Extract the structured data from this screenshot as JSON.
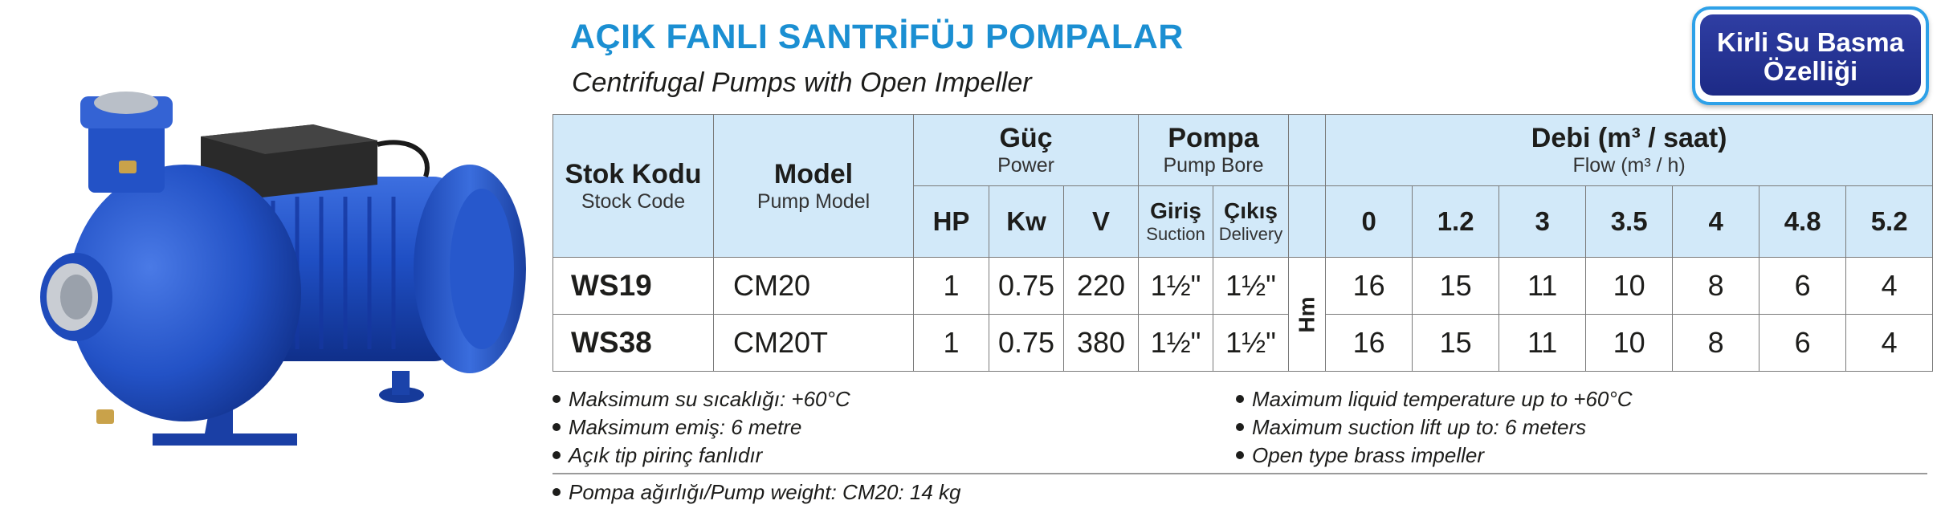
{
  "header": {
    "title": "AÇIK FANLI SANTRİFÜJ POMPALAR",
    "subtitle": "Centrifugal Pumps with Open Impeller"
  },
  "badge": {
    "line1": "Kirli Su Basma",
    "line2": "Özelliği"
  },
  "colors": {
    "title_blue": "#1b8fd2",
    "header_fill": "#d2e9f9",
    "badge_navy": "#2f3ea3",
    "pump_blue": "#1f4fc4"
  },
  "product_image": "blue-centrifugal-pump",
  "table": {
    "stock_code": {
      "tr": "Stok Kodu",
      "en": "Stock Code"
    },
    "model": {
      "tr": "Model",
      "en": "Pump Model"
    },
    "power": {
      "tr": "Güç",
      "en": "Power",
      "cols": [
        "HP",
        "Kw",
        "V"
      ]
    },
    "pump": {
      "tr": "Pompa",
      "en": "Pump Bore",
      "suction": {
        "tr": "Giriş",
        "en": "Suction"
      },
      "delivery": {
        "tr": "Çıkış",
        "en": "Delivery"
      }
    },
    "flow": {
      "tr": "Debi (m³ / saat)",
      "en": "Flow (m³ / h)",
      "cols": [
        "0",
        "1.2",
        "3",
        "3.5",
        "4",
        "4.8",
        "5.2"
      ]
    },
    "head_label": "Hm",
    "rows": [
      {
        "code": "WS19",
        "model": "CM20",
        "hp": "1",
        "kw": "0.75",
        "v": "220",
        "suction": "1½\"",
        "delivery": "1½\"",
        "heads": [
          "16",
          "15",
          "11",
          "10",
          "8",
          "6",
          "4"
        ]
      },
      {
        "code": "WS38",
        "model": "CM20T",
        "hp": "1",
        "kw": "0.75",
        "v": "380",
        "suction": "1½\"",
        "delivery": "1½\"",
        "heads": [
          "16",
          "15",
          "11",
          "10",
          "8",
          "6",
          "4"
        ]
      }
    ]
  },
  "notes": {
    "tr": [
      "Maksimum su sıcaklığı: +60°C",
      "Maksimum emiş: 6 metre",
      "Açık tip pirinç fanlıdır"
    ],
    "en": [
      "Maximum liquid temperature  up to +60°C",
      "Maximum suction lift up to: 6 meters",
      "Open type brass impeller"
    ],
    "weight": "Pompa ağırlığı/Pump weight: CM20: 14 kg"
  }
}
